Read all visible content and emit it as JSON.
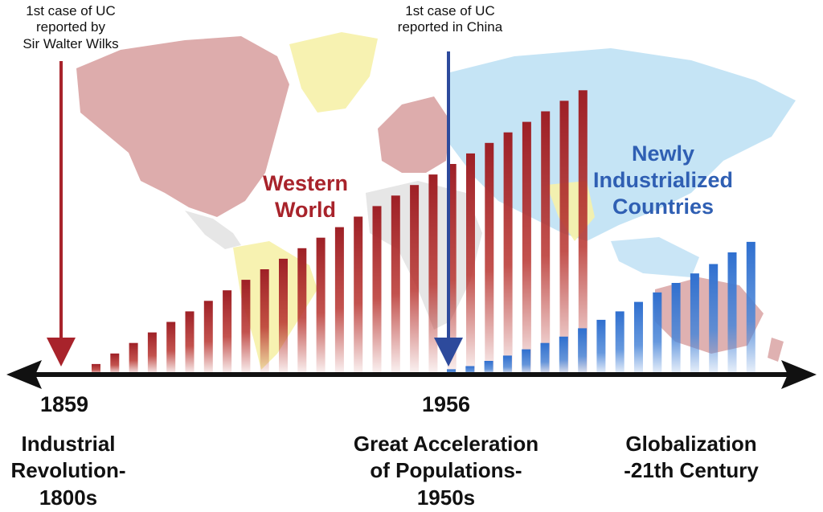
{
  "annotations": {
    "wilks_note": [
      "1st case of UC",
      "reported by",
      "Sir Walter Wilks"
    ],
    "china_note": [
      "1st case of UC",
      "reported in China"
    ]
  },
  "regions": {
    "western": [
      "Western",
      "World"
    ],
    "newly": [
      "Newly",
      "Industrialized",
      "Countries"
    ]
  },
  "timeline": {
    "years": [
      "1859",
      "1956"
    ],
    "eras": {
      "industrial": [
        "Industrial",
        "Revolution-",
        "1800s"
      ],
      "acceleration": [
        "Great Acceleration",
        "of Populations-",
        "1950s"
      ],
      "globalization": [
        "Globalization",
        "-21th Century"
      ]
    }
  },
  "colors": {
    "western": "#a8232b",
    "newly": "#2f6fcf",
    "map_west": "#d9a3a3",
    "map_east": "#bfe1f4",
    "map_yellow": "#f6f1a8",
    "map_grey": "#e3e3e3",
    "axis": "#111111",
    "arrow_red": "#a8232b",
    "arrow_blue": "#2d4a9c"
  },
  "icons": [
    "world-map",
    "red-down-arrow",
    "blue-down-arrow",
    "double-headed-timeline-arrow"
  ],
  "chart_data": {
    "type": "bar",
    "series": [
      {
        "values": [
          1,
          2,
          3,
          4,
          5,
          6,
          7,
          8,
          9,
          10,
          11,
          12,
          13,
          14,
          15,
          16,
          17,
          18,
          19,
          20,
          21,
          22,
          23,
          24,
          25,
          26,
          27
        ]
      },
      {
        "values": [
          0.5,
          0.8,
          1.3,
          1.8,
          2.4,
          3,
          3.6,
          4.4,
          5.2,
          6,
          6.9,
          7.8,
          8.7,
          9.6,
          10.5,
          11.6,
          12.6
        ]
      }
    ]
  }
}
